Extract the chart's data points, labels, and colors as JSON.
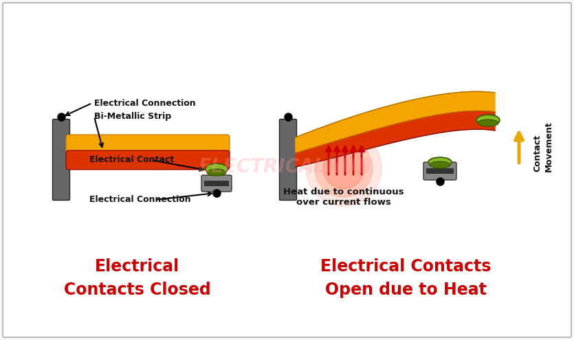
{
  "bg_color": "#f8f8f8",
  "border_color": "#bbbbbb",
  "title_left": "Electrical\nContacts Closed",
  "title_right": "Electrical Contacts\nOpen due to Heat",
  "label_elec_conn_top": "Electrical Connection",
  "label_bimetal": "Bi-Metallic Strip",
  "label_elec_contact": "Electrical Contact",
  "label_elec_conn_bot": "Electrical Connection",
  "label_heat": "Heat due to continuous\nover current flows",
  "label_contact_movement": "Contact\nMovement",
  "watermark": "ELECTRICALHUB",
  "text_color_red": "#cc0000",
  "text_color_black": "#111111",
  "arrow_color_yellow": "#e8a800",
  "heat_arrow_color": "#cc0000",
  "strip_orange_top": "#f5a500",
  "strip_orange_bot": "#e07000",
  "strip_red_top": "#dd3300",
  "strip_red_bot": "#aa1100",
  "contact_green_top": "#88bb22",
  "contact_green_bot": "#557700",
  "block_gray_top": "#888888",
  "block_gray_bot": "#333333",
  "heat_glow": "#ff3300"
}
